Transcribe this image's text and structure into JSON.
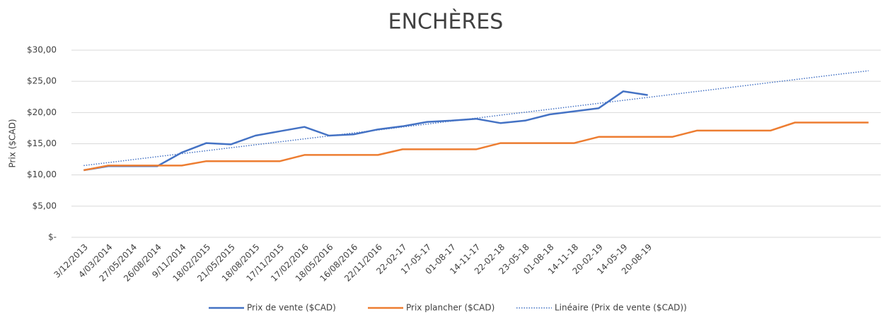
{
  "chart_data": {
    "type": "line",
    "title": "ENCHÈRES",
    "y_label": "Prix ($CAD)",
    "categories": [
      "3/12/2013",
      "4/03/2014",
      "27/05/2014",
      "26/08/2014",
      "9/11/2014",
      "18/02/2015",
      "21/05/2015",
      "18/08/2015",
      "17/11/2015",
      "17/02/2016",
      "18/05/2016",
      "16/08/2016",
      "22/11/2016",
      "22-02-17",
      "17-05-17",
      "01-08-17",
      "14-11-17",
      "22-02-18",
      "23-05-18",
      "01-08-18",
      "14-11-18",
      "20-02-19",
      "14-05-19",
      "20-08-19",
      null,
      null,
      null,
      null,
      null,
      null,
      null,
      null,
      null
    ],
    "series": [
      {
        "name": "Prix de vente ($CAD)",
        "color": "#4472c4",
        "style": "solid",
        "values": [
          10.75,
          11.4,
          11.4,
          11.4,
          13.6,
          15.1,
          14.9,
          16.3,
          17.0,
          17.7,
          16.3,
          16.5,
          17.3,
          17.8,
          18.5,
          18.7,
          19.0,
          18.3,
          18.7,
          19.7,
          20.2,
          20.7,
          23.4,
          22.8,
          null,
          null,
          null,
          null,
          null,
          null,
          null,
          null,
          null
        ]
      },
      {
        "name": "Prix plancher ($CAD)",
        "color": "#ed7d31",
        "style": "solid",
        "values": [
          10.75,
          11.5,
          11.5,
          11.5,
          11.5,
          12.2,
          12.2,
          12.2,
          12.2,
          13.2,
          13.2,
          13.2,
          13.2,
          14.1,
          14.1,
          14.1,
          14.1,
          15.1,
          15.1,
          15.1,
          15.1,
          16.1,
          16.1,
          16.1,
          16.1,
          17.1,
          17.1,
          17.1,
          17.1,
          18.4,
          18.4,
          18.4,
          18.4
        ]
      },
      {
        "name": "Linéaire (Prix de vente ($CAD))",
        "color": "#4472c4",
        "style": "dotted",
        "values": [
          11.5,
          11.98,
          12.45,
          12.93,
          13.4,
          13.88,
          14.35,
          14.83,
          15.3,
          15.78,
          16.25,
          16.73,
          17.2,
          17.68,
          18.15,
          18.63,
          19.1,
          19.58,
          20.05,
          20.53,
          21.0,
          21.48,
          21.95,
          22.43,
          22.9,
          23.38,
          23.85,
          24.33,
          24.8,
          25.28,
          25.75,
          26.23,
          26.7
        ]
      }
    ],
    "ylim": [
      0,
      30
    ],
    "yticks": [
      {
        "value": 0,
        "label": "$-"
      },
      {
        "value": 5,
        "label": "$5,00"
      },
      {
        "value": 10,
        "label": "$10,00"
      },
      {
        "value": 15,
        "label": "$15,00"
      },
      {
        "value": 20,
        "label": "$20,00"
      },
      {
        "value": 25,
        "label": "$25,00"
      },
      {
        "value": 30,
        "label": "$30,00"
      }
    ],
    "grid": true,
    "legend": "bottom"
  }
}
